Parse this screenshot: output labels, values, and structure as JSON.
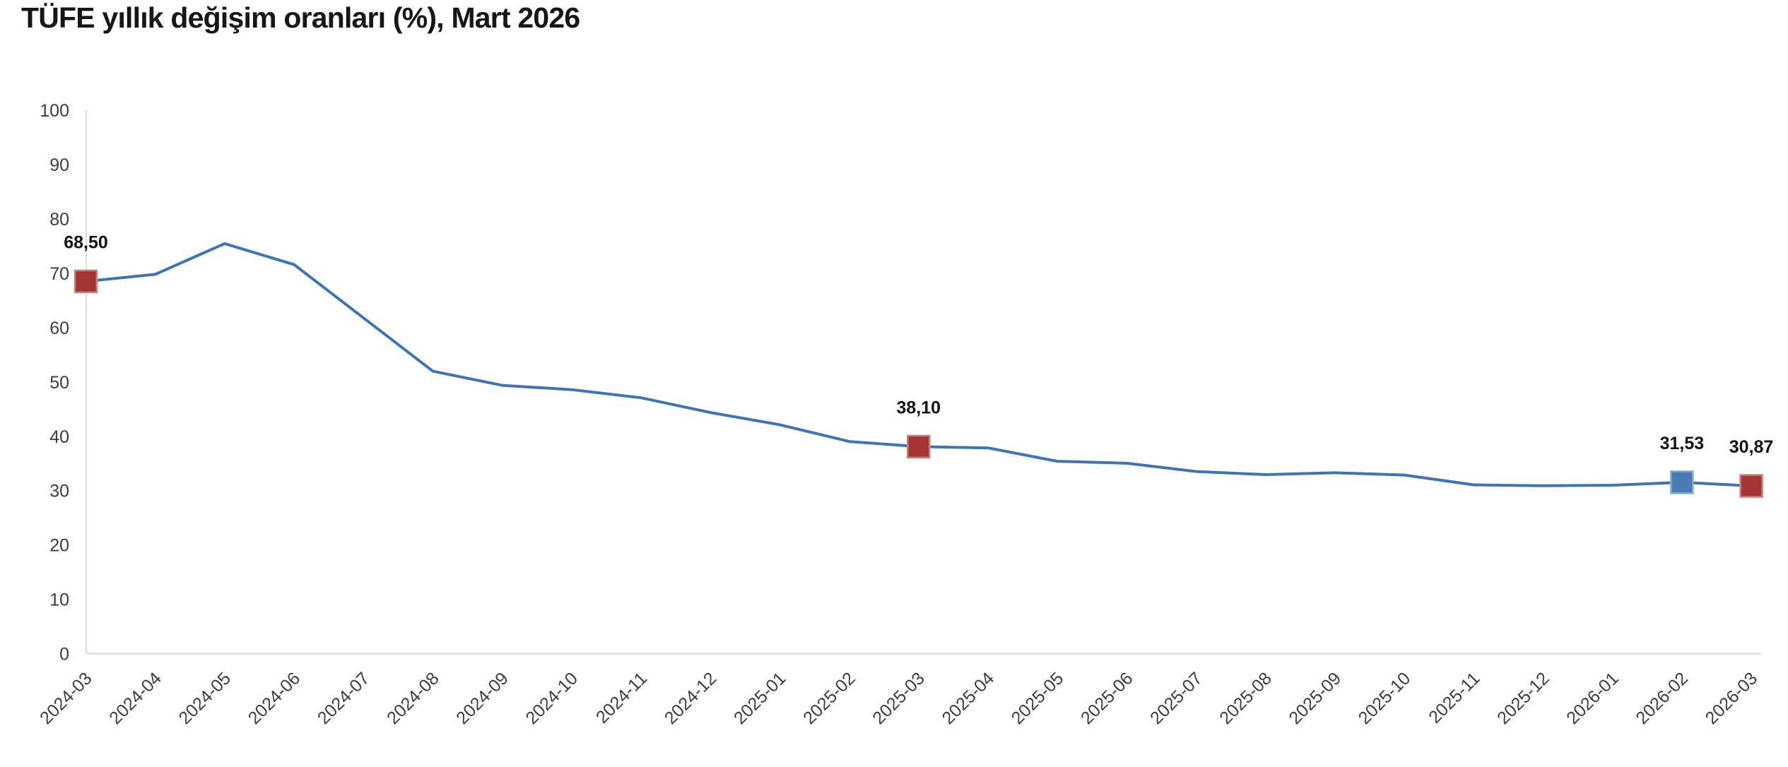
{
  "page": {
    "background": "#ffffff"
  },
  "header": {
    "title": "TÜFE yıllık değişim oranları (%), Mart 2026"
  },
  "chart_data": {
    "type": "line",
    "title": "TÜFE yıllık değişim oranları (%), Mart 2026",
    "x": [
      "2024-03",
      "2024-04",
      "2024-05",
      "2024-06",
      "2024-07",
      "2024-08",
      "2024-09",
      "2024-10",
      "2024-11",
      "2024-12",
      "2025-01",
      "2025-02",
      "2025-03",
      "2025-04",
      "2025-05",
      "2025-06",
      "2025-07",
      "2025-08",
      "2025-09",
      "2025-10",
      "2025-11",
      "2025-12",
      "2026-01",
      "2026-02",
      "2026-03"
    ],
    "series": [
      {
        "name": "TÜFE yıllık değişim oranı (%)",
        "color": "#3e74b4",
        "line_width": 4,
        "values": [
          68.5,
          69.8,
          75.45,
          71.6,
          61.78,
          51.97,
          49.38,
          48.58,
          47.09,
          44.38,
          42.12,
          39.05,
          38.1,
          37.86,
          35.41,
          35.05,
          33.52,
          32.95,
          33.29,
          32.87,
          31.07,
          30.9,
          31.0,
          31.53,
          30.87
        ]
      }
    ],
    "ylim": [
      0,
      100
    ],
    "yticks": [
      0,
      10,
      20,
      30,
      40,
      50,
      60,
      70,
      80,
      90,
      100
    ],
    "xlabel": "",
    "ylabel": "",
    "grid": false,
    "legend_position": "none",
    "x_tick_rotation": 45,
    "decimal_separator": ",",
    "highlighted_points": [
      {
        "category": "2024-03",
        "value": 68.5,
        "label": "68,50",
        "marker": "square",
        "fill": "#a3342f",
        "stroke": "#c5837f"
      },
      {
        "category": "2025-03",
        "value": 38.1,
        "label": "38,10",
        "marker": "square",
        "fill": "#a3342f",
        "stroke": "#c5837f"
      },
      {
        "category": "2026-02",
        "value": 31.53,
        "label": "31,53",
        "marker": "square",
        "fill": "#4a7cb5",
        "stroke": "#88aacf"
      },
      {
        "category": "2026-03",
        "value": 30.87,
        "label": "30,87",
        "marker": "square",
        "fill": "#a3342f",
        "stroke": "#c5837f"
      }
    ]
  },
  "colors": {
    "background": "#ffffff",
    "axis_line": "#dcdfe4",
    "tick_label": "#3d3d3d",
    "title": "#161616",
    "data_label": "#111111"
  }
}
